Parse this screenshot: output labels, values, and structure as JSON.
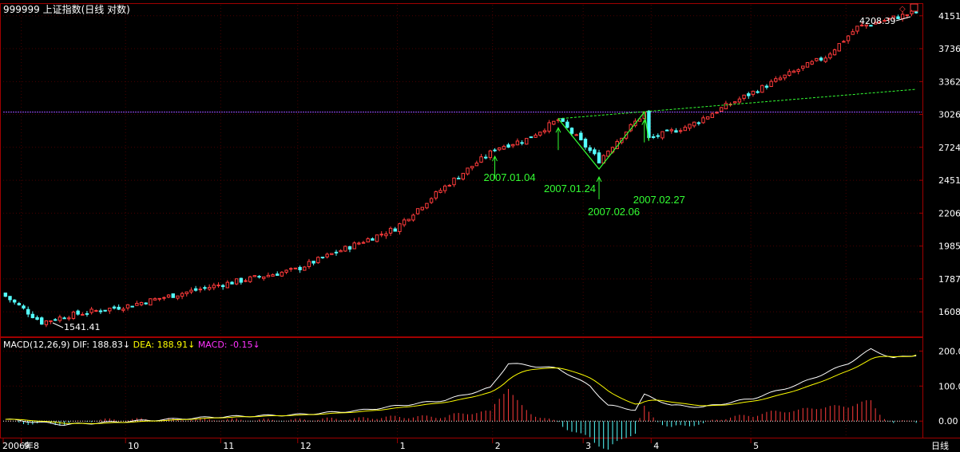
{
  "window": {
    "title": "999999 上证指数(日线 对数)",
    "period_label": "日线"
  },
  "colors": {
    "up": "#ff3b3b",
    "down": "#54ffff",
    "grid": "#4a0000",
    "frame": "#a00000",
    "annotation": "#33ff33",
    "dif_line": "#ffffff",
    "dea_line": "#ffff00",
    "macd_label": "#ff33ff",
    "resistance": "#9a4dff"
  },
  "chart_data": [
    {
      "type": "candlestick",
      "title": "999999 上证指数(日线 对数)",
      "scale": "log",
      "y_ticks": [
        1608,
        1787,
        1985,
        2206,
        2451,
        2724,
        3026,
        3362,
        3736,
        4151
      ],
      "ylim": [
        1490,
        4300
      ],
      "x_month_labels": [
        "2006年8",
        "9",
        "10",
        "11",
        "12",
        "1",
        "2",
        "3",
        "4",
        "5"
      ],
      "x_range": [
        "2006-07-26",
        "2007-05-29"
      ],
      "anchors": [
        {
          "date": "2006-07-26",
          "close": 1690
        },
        {
          "date": "2006-08-07",
          "close": 1555
        },
        {
          "date": "2006-08-15",
          "close": 1590
        },
        {
          "date": "2006-09-01",
          "close": 1640
        },
        {
          "date": "2006-09-29",
          "close": 1752
        },
        {
          "date": "2006-10-31",
          "close": 1840
        },
        {
          "date": "2006-11-30",
          "close": 2100
        },
        {
          "date": "2006-12-29",
          "close": 2675
        },
        {
          "date": "2007-01-04",
          "close": 2715
        },
        {
          "date": "2007-01-15",
          "close": 2795
        },
        {
          "date": "2007-01-24",
          "close": 2975
        },
        {
          "date": "2007-02-06",
          "close": 2612
        },
        {
          "date": "2007-02-27",
          "close": 3040
        },
        {
          "date": "2007-02-28",
          "close": 2800
        },
        {
          "date": "2007-03-13",
          "close": 2920
        },
        {
          "date": "2007-04-02",
          "close": 3250
        },
        {
          "date": "2007-04-24",
          "close": 3640
        },
        {
          "date": "2007-04-30",
          "close": 3840
        },
        {
          "date": "2007-05-10",
          "close": 4000
        },
        {
          "date": "2007-05-29",
          "close": 4200
        }
      ],
      "annotations": [
        {
          "label": "2007.01.04",
          "date": "2007-01-04",
          "value": 2715
        },
        {
          "label": "2007.01.24",
          "date": "2007-01-24",
          "value": 2975
        },
        {
          "label": "2007.02.06",
          "date": "2007-02-06",
          "value": 2541
        },
        {
          "label": "2007.02.27",
          "date": "2007-02-27",
          "value": 3049
        }
      ],
      "extremes": {
        "high": "4208.39",
        "low": "1541.41"
      },
      "resistance_level": 3049,
      "trend_line": {
        "from": {
          "date": "2007-01-24",
          "value": 2985
        },
        "to": {
          "date": "2007-05-29",
          "value": 3280
        }
      },
      "m_pattern": [
        {
          "date": "2007-01-24",
          "value": 2985
        },
        {
          "date": "2007-02-06",
          "value": 2541
        },
        {
          "date": "2007-02-27",
          "value": 3049
        },
        {
          "date": "2007-02-28",
          "value": 2780
        }
      ]
    },
    {
      "type": "line",
      "title": "MACD(12,26,9)",
      "legend": [
        {
          "name": "DIF",
          "value": "188.83"
        },
        {
          "name": "DEA",
          "value": "188.91"
        },
        {
          "name": "MACD",
          "value": "-0.15"
        }
      ],
      "y_ticks": [
        "200.0",
        "100.0",
        "0.00"
      ],
      "ylim": [
        -45,
        235
      ],
      "dif_keyframes": [
        {
          "date": "2006-07-26",
          "value": 5
        },
        {
          "date": "2006-08-14",
          "value": -10
        },
        {
          "date": "2006-08-25",
          "value": -4
        },
        {
          "date": "2006-09-29",
          "value": 12
        },
        {
          "date": "2006-10-31",
          "value": 18
        },
        {
          "date": "2006-11-20",
          "value": 30
        },
        {
          "date": "2006-12-15",
          "value": 60
        },
        {
          "date": "2006-12-29",
          "value": 95
        },
        {
          "date": "2007-01-09",
          "value": 165
        },
        {
          "date": "2007-01-24",
          "value": 150
        },
        {
          "date": "2007-02-02",
          "value": 100
        },
        {
          "date": "2007-02-08",
          "value": 45
        },
        {
          "date": "2007-02-16",
          "value": 32
        },
        {
          "date": "2007-02-27",
          "value": 75
        },
        {
          "date": "2007-03-07",
          "value": 45
        },
        {
          "date": "2007-03-16",
          "value": 40
        },
        {
          "date": "2007-04-02",
          "value": 65
        },
        {
          "date": "2007-04-16",
          "value": 105
        },
        {
          "date": "2007-05-08",
          "value": 165
        },
        {
          "date": "2007-05-15",
          "value": 205
        },
        {
          "date": "2007-05-22",
          "value": 180
        },
        {
          "date": "2007-05-29",
          "value": 188.83
        }
      ]
    }
  ]
}
